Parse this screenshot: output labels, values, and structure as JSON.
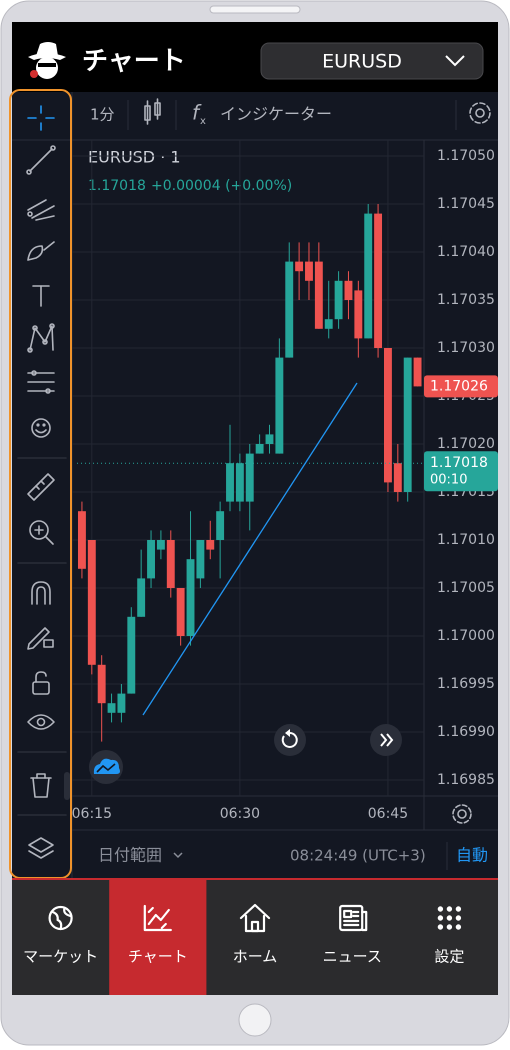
{
  "header": {
    "title": "チャート",
    "symbol": "EURUSD"
  },
  "toolbar": {
    "interval": "1分",
    "indicators": "インジケーター"
  },
  "chart_data": {
    "type": "candlestick",
    "title": "EURUSD · 1",
    "change_label": "+0.00004 (+0.00%)",
    "up_color": "#26a69a",
    "down_color": "#ef5350",
    "categories": [
      null,
      "06:15",
      null,
      null,
      null,
      null,
      null,
      null,
      null,
      null,
      null,
      null,
      null,
      null,
      null,
      null,
      "06:30",
      null,
      null,
      null,
      null,
      null,
      null,
      null,
      null,
      null,
      null,
      null,
      null,
      null,
      null,
      "06:45",
      null,
      null,
      null
    ],
    "open": [
      1.17013,
      1.1701,
      1.16997,
      1.16992,
      1.16992,
      1.16994,
      1.17002,
      1.17006,
      1.17009,
      1.1701,
      1.17005,
      1.17,
      1.17006,
      1.1701,
      1.1701,
      1.17014,
      1.17014,
      1.17014,
      1.17019,
      1.1702,
      1.17019,
      1.17029,
      1.17039,
      1.17039,
      1.17039,
      1.17032,
      1.17033,
      1.17037,
      1.17036,
      1.17031,
      1.17044,
      1.1703,
      1.17018,
      1.17015,
      1.17029
    ],
    "high": [
      1.17014,
      1.1701,
      1.16998,
      1.16994,
      1.16995,
      1.17003,
      1.17009,
      1.17011,
      1.17011,
      1.17011,
      1.17005,
      1.17013,
      1.1701,
      1.17012,
      1.17014,
      1.17022,
      1.17019,
      1.1702,
      1.17021,
      1.17022,
      1.17031,
      1.17041,
      1.17041,
      1.17041,
      1.17041,
      1.17037,
      1.17038,
      1.17038,
      1.17037,
      1.17045,
      1.17045,
      1.1703,
      1.1702,
      1.17029,
      1.17029
    ],
    "low": [
      1.17006,
      1.16996,
      1.16989,
      1.16991,
      1.16991,
      1.16994,
      1.17002,
      1.17005,
      1.17008,
      1.17004,
      1.16999,
      1.16999,
      1.17005,
      1.17008,
      1.17006,
      1.17013,
      1.17013,
      1.17011,
      1.17019,
      1.17019,
      1.17019,
      1.17029,
      1.17035,
      1.17035,
      1.17032,
      1.17031,
      1.17032,
      1.17033,
      1.17029,
      1.17031,
      1.17029,
      1.17015,
      1.17014,
      1.17014,
      1.17026
    ],
    "close": [
      1.17007,
      1.16997,
      1.16993,
      1.16993,
      1.16994,
      1.17002,
      1.17006,
      1.1701,
      1.1701,
      1.17005,
      1.17,
      1.17008,
      1.1701,
      1.17009,
      1.17013,
      1.17018,
      1.17018,
      1.17019,
      1.1702,
      1.17021,
      1.17029,
      1.17039,
      1.17038,
      1.17037,
      1.17032,
      1.17033,
      1.17037,
      1.17035,
      1.17031,
      1.17044,
      1.1703,
      1.17016,
      1.17015,
      1.17029,
      1.17026
    ],
    "ylim": [
      1.16984,
      1.17052
    ],
    "yticks": [
      {
        "value": 1.1705,
        "label": "1.17050"
      },
      1.17045,
      {
        "value": 1.1704,
        "label": "1.17040"
      },
      1.17035,
      {
        "value": 1.1703,
        "label": "1.17030"
      },
      1.17025,
      {
        "value": 1.1702,
        "label": "1.17020"
      },
      1.17015,
      {
        "value": 1.1701,
        "label": "1.17010"
      },
      1.17005,
      {
        "value": 1.17,
        "label": "1.17000"
      },
      1.16995,
      {
        "value": 1.1699,
        "label": "1.16990"
      },
      1.16985
    ],
    "grid": true,
    "markers": [
      {
        "value": 1.17026,
        "color": "#ef5350"
      },
      {
        "value": 1.17018,
        "color": "#26a69a",
        "countdown": "00:10"
      }
    ]
  },
  "bottom_bar": {
    "date_range": "日付範囲",
    "time": "08:24:49 (UTC+3)",
    "auto": "自動"
  },
  "nav": {
    "items": [
      "マーケット",
      "チャート",
      "ホーム",
      "ニュース",
      "設定"
    ],
    "active": 1
  }
}
